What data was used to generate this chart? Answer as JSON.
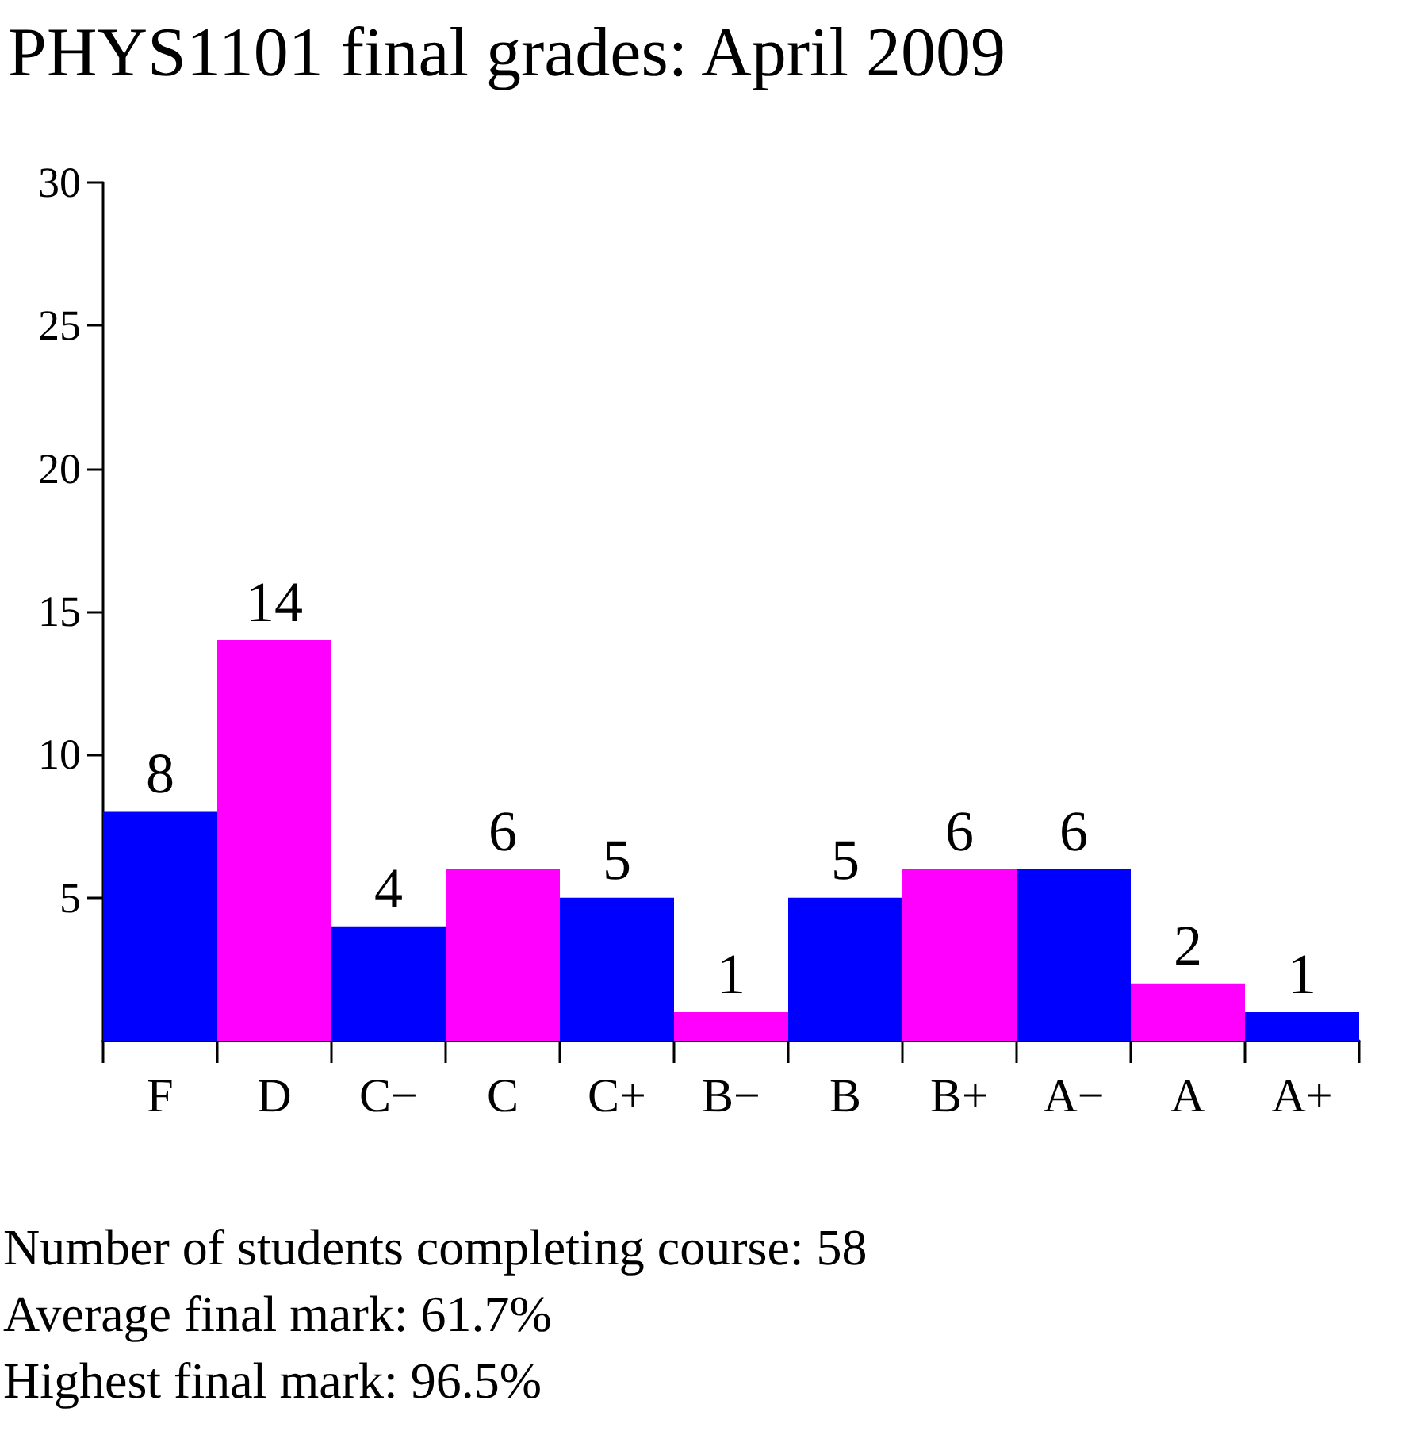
{
  "chart_data": {
    "type": "bar",
    "title": "PHYS1101 final grades: April 2009",
    "categories": [
      "F",
      "D",
      "C−",
      "C",
      "C+",
      "B−",
      "B",
      "B+",
      "A−",
      "A",
      "A+"
    ],
    "values": [
      8,
      14,
      4,
      6,
      5,
      1,
      5,
      6,
      6,
      2,
      1
    ],
    "colors": [
      "#0000ff",
      "#ff00ff",
      "#0000ff",
      "#ff00ff",
      "#0000ff",
      "#ff00ff",
      "#0000ff",
      "#ff00ff",
      "#0000ff",
      "#ff00ff",
      "#0000ff"
    ],
    "ylim": [
      0,
      30
    ],
    "yticks": [
      5,
      10,
      15,
      20,
      25,
      30
    ],
    "grid": false,
    "data_labels": true,
    "annotations": [
      "Number of students completing course: 58",
      "Average final mark: 61.7%",
      "Highest final mark: 96.5%"
    ]
  }
}
